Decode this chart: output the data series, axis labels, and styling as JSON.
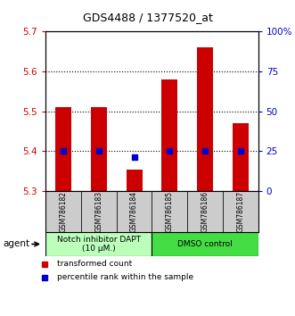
{
  "title": "GDS4488 / 1377520_at",
  "samples": [
    "GSM786182",
    "GSM786183",
    "GSM786184",
    "GSM786185",
    "GSM786186",
    "GSM786187"
  ],
  "bar_values": [
    5.51,
    5.51,
    5.355,
    5.58,
    5.66,
    5.47
  ],
  "bar_base": 5.3,
  "percentile_values": [
    5.4,
    5.4,
    5.385,
    5.4,
    5.4,
    5.4
  ],
  "ylim_left": [
    5.3,
    5.7
  ],
  "ylim_right": [
    0,
    100
  ],
  "yticks_left": [
    5.3,
    5.4,
    5.5,
    5.6,
    5.7
  ],
  "yticks_right": [
    0,
    25,
    50,
    75,
    100
  ],
  "ytick_labels_right": [
    "0",
    "25",
    "50",
    "75",
    "100%"
  ],
  "hlines": [
    5.4,
    5.5,
    5.6
  ],
  "bar_color": "#CC0000",
  "percentile_color": "#0000CC",
  "group1_label": "Notch inhibitor DAPT\n(10 μM.)",
  "group2_label": "DMSO control",
  "group1_color": "#BBFFBB",
  "group2_color": "#44DD44",
  "legend_bar_label": "transformed count",
  "legend_pct_label": "percentile rank within the sample",
  "agent_label": "agent",
  "tick_label_color_left": "#CC0000",
  "tick_label_color_right": "#0000CC",
  "sample_box_color": "#CCCCCC",
  "title_fontsize": 9,
  "axis_fontsize": 7.5,
  "sample_fontsize": 5.5,
  "group_fontsize": 6.5,
  "legend_fontsize": 6.5,
  "agent_fontsize": 7.5
}
